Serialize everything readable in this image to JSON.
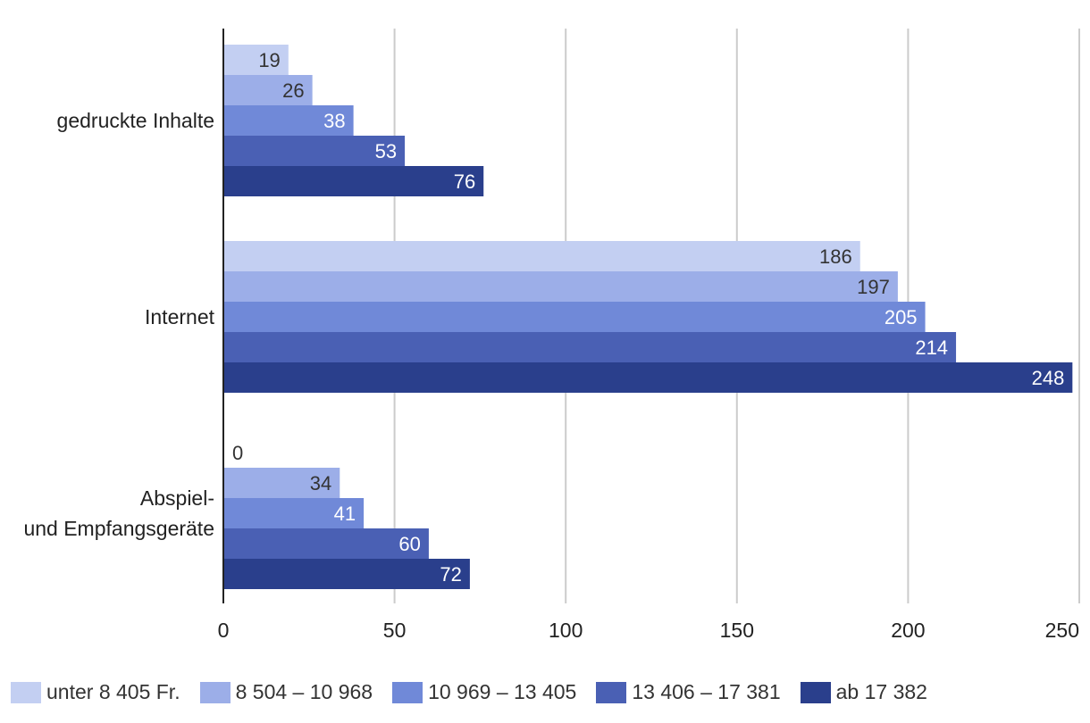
{
  "chart_data": {
    "type": "bar",
    "orientation": "horizontal",
    "categories": [
      "gedruckte Inhalte",
      "Internet",
      "Abspiel-\nund Empfangsgeräte"
    ],
    "series": [
      {
        "name": "unter 8 405 Fr.",
        "color": "#c3cff2",
        "values": [
          19,
          186,
          0
        ]
      },
      {
        "name": "8 504 – 10 968",
        "color": "#9caee8",
        "values": [
          26,
          197,
          34
        ]
      },
      {
        "name": "10 969 – 13 405",
        "color": "#7089d8",
        "values": [
          38,
          205,
          41
        ]
      },
      {
        "name": "13 406 – 17 381",
        "color": "#4a60b4",
        "values": [
          53,
          214,
          60
        ]
      },
      {
        "name": "ab 17 382",
        "color": "#2a3f8c",
        "values": [
          76,
          248,
          72
        ]
      }
    ],
    "xlim": [
      0,
      250
    ],
    "xticks": [
      0,
      50,
      100,
      150,
      200,
      250
    ],
    "grid": true,
    "legend": "bottom"
  }
}
